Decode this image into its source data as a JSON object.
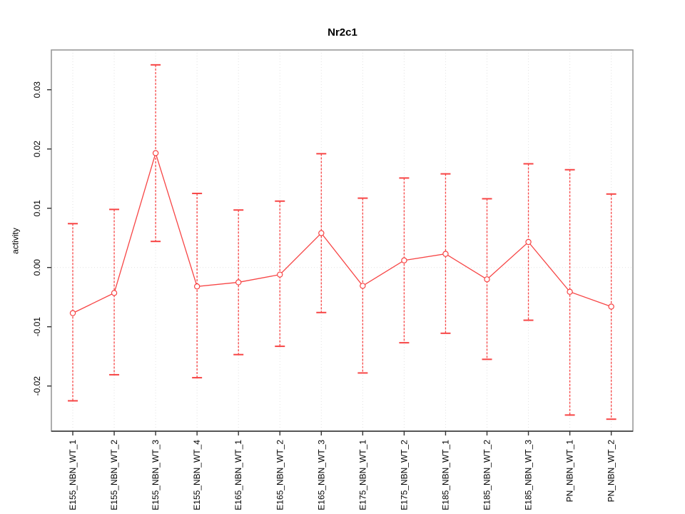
{
  "page": {
    "background": "#ffffff"
  },
  "chart_data": {
    "type": "line",
    "title": "Nr2c1",
    "xlabel": "",
    "ylabel": "activity",
    "legend": "none",
    "grid": {
      "vertical_dotted_gridlines": true,
      "zero_dotted_line": true
    },
    "marker": "open-circle",
    "error_bars": "dashed-vertical-with-caps",
    "categories": [
      "E155_NBN_WT_1",
      "E155_NBN_WT_2",
      "E155_NBN_WT_3",
      "E155_NBN_WT_4",
      "E165_NBN_WT_1",
      "E165_NBN_WT_2",
      "E165_NBN_WT_3",
      "E175_NBN_WT_1",
      "E175_NBN_WT_2",
      "E185_NBN_WT_1",
      "E185_NBN_WT_2",
      "E185_NBN_WT_3",
      "PN_NBN_WT_1",
      "PN_NBN_WT_2"
    ],
    "series": [
      {
        "name": "activity",
        "values": [
          -0.0077,
          -0.0043,
          0.0193,
          -0.0032,
          -0.0025,
          -0.0012,
          0.0058,
          -0.0031,
          0.0012,
          0.0023,
          -0.002,
          0.0043,
          -0.0041,
          -0.0066
        ],
        "error_upper": [
          0.0074,
          0.0098,
          0.0342,
          0.0125,
          0.0097,
          0.0112,
          0.0192,
          0.0117,
          0.0151,
          0.0158,
          0.0116,
          0.0175,
          0.0165,
          0.0124
        ],
        "error_lower": [
          -0.0225,
          -0.0181,
          0.0044,
          -0.0186,
          -0.0147,
          -0.0133,
          -0.0076,
          -0.0178,
          -0.0127,
          -0.0111,
          -0.0155,
          -0.0089,
          -0.0249,
          -0.0256
        ]
      }
    ],
    "y_ticks": {
      "values": [
        0.03,
        0.02,
        0.01,
        0.0,
        -0.01,
        -0.02
      ],
      "labels": [
        "0.03",
        "0.02",
        "0.01",
        "0.00",
        "-0.01",
        "-0.02"
      ]
    },
    "ylim": [
      -0.0276,
      0.0367
    ],
    "colors": {
      "series": "#f74545",
      "grid": "#e2e2e2",
      "box": "#999999",
      "bottom_axis": "#333333",
      "ticks": "#333333",
      "text": "#000000",
      "marker_fill": "#ffffff"
    }
  }
}
